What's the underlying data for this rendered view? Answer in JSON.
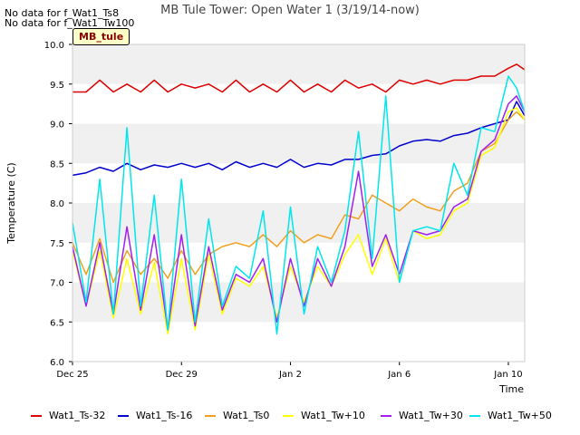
{
  "notes": [
    "No data for f_Wat1_Ts8",
    "No data for f_Wat1_Tw100"
  ],
  "site_tag": "MB_tule",
  "chart_data": {
    "type": "line",
    "title": "MB Tule Tower: Open Water 1 (3/19/14-now)",
    "xlabel": "Time",
    "ylabel": "Temperature (C)",
    "ylim": [
      6.0,
      10.0
    ],
    "y_ticks": [
      "6.0",
      "6.5",
      "7.0",
      "7.5",
      "8.0",
      "8.5",
      "9.0",
      "9.5",
      "10.0"
    ],
    "y_tick_values": [
      6.0,
      6.5,
      7.0,
      7.5,
      8.0,
      8.5,
      9.0,
      9.5,
      10.0
    ],
    "x_unit": "days since Dec 25",
    "xlim": [
      0,
      16.6
    ],
    "x_ticks": [
      {
        "label": "Dec 25",
        "value": 0
      },
      {
        "label": "Dec 29",
        "value": 4
      },
      {
        "label": "Jan 2",
        "value": 8
      },
      {
        "label": "Jan 6",
        "value": 12
      },
      {
        "label": "Jan 10",
        "value": 16
      }
    ],
    "grid": "horizontal bands",
    "legend_position": "bottom",
    "series": [
      {
        "name": "Wat1_Ts-32",
        "color": "#dd0000",
        "x": [
          0,
          0.5,
          1,
          1.5,
          2,
          2.5,
          3,
          3.5,
          4,
          4.5,
          5,
          5.5,
          6,
          6.5,
          7,
          7.5,
          8,
          8.5,
          9,
          9.5,
          10,
          10.5,
          11,
          11.5,
          12,
          12.5,
          13,
          13.5,
          14,
          14.5,
          15,
          15.5,
          16,
          16.3,
          16.6
        ],
        "values": [
          9.4,
          9.4,
          9.55,
          9.4,
          9.5,
          9.4,
          9.55,
          9.4,
          9.5,
          9.45,
          9.5,
          9.4,
          9.55,
          9.4,
          9.5,
          9.4,
          9.55,
          9.4,
          9.5,
          9.4,
          9.55,
          9.45,
          9.5,
          9.4,
          9.55,
          9.5,
          9.55,
          9.5,
          9.55,
          9.55,
          9.6,
          9.6,
          9.7,
          9.75,
          9.68
        ]
      },
      {
        "name": "Wat1_Ts-16",
        "color": "#0000cc",
        "x": [
          0,
          0.5,
          1,
          1.5,
          2,
          2.5,
          3,
          3.5,
          4,
          4.5,
          5,
          5.5,
          6,
          6.5,
          7,
          7.5,
          8,
          8.5,
          9,
          9.5,
          10,
          10.5,
          11,
          11.5,
          12,
          12.5,
          13,
          13.5,
          14,
          14.5,
          15,
          15.5,
          16,
          16.3,
          16.6
        ],
        "values": [
          8.35,
          8.38,
          8.45,
          8.4,
          8.5,
          8.42,
          8.48,
          8.45,
          8.5,
          8.45,
          8.5,
          8.42,
          8.52,
          8.45,
          8.5,
          8.45,
          8.55,
          8.45,
          8.5,
          8.48,
          8.55,
          8.55,
          8.6,
          8.62,
          8.72,
          8.78,
          8.8,
          8.78,
          8.85,
          8.88,
          8.95,
          9.0,
          9.05,
          9.28,
          9.1
        ]
      },
      {
        "name": "Wat1_Ts0",
        "color": "#f0a020",
        "x": [
          0,
          0.5,
          1,
          1.5,
          2,
          2.5,
          3,
          3.5,
          4,
          4.5,
          5,
          5.5,
          6,
          6.5,
          7,
          7.5,
          8,
          8.5,
          9,
          9.5,
          10,
          10.5,
          11,
          11.5,
          12,
          12.5,
          13,
          13.5,
          14,
          14.5,
          15,
          15.5,
          16,
          16.3,
          16.6
        ],
        "values": [
          7.5,
          7.1,
          7.55,
          7.0,
          7.4,
          7.1,
          7.3,
          7.05,
          7.4,
          7.1,
          7.35,
          7.45,
          7.5,
          7.45,
          7.6,
          7.45,
          7.65,
          7.5,
          7.6,
          7.55,
          7.85,
          7.8,
          8.1,
          8.0,
          7.9,
          8.05,
          7.95,
          7.9,
          8.15,
          8.25,
          8.65,
          8.75,
          9.05,
          9.15,
          9.05
        ]
      },
      {
        "name": "Wat1_Tw+10",
        "color": "#ffff00",
        "x": [
          0,
          0.5,
          1,
          1.5,
          2,
          2.5,
          3,
          3.5,
          4,
          4.5,
          5,
          5.5,
          6,
          6.5,
          7,
          7.5,
          8,
          8.5,
          9,
          9.5,
          10,
          10.5,
          11,
          11.5,
          12,
          12.5,
          13,
          13.5,
          14,
          14.5,
          15,
          15.5,
          16,
          16.3,
          16.6
        ],
        "values": [
          7.4,
          6.7,
          7.4,
          6.55,
          7.3,
          6.6,
          7.25,
          6.35,
          7.3,
          6.4,
          7.35,
          6.6,
          7.05,
          6.95,
          7.2,
          6.55,
          7.2,
          6.75,
          7.2,
          6.95,
          7.35,
          7.6,
          7.1,
          7.55,
          7.0,
          7.65,
          7.55,
          7.6,
          7.9,
          8.0,
          8.6,
          8.7,
          9.15,
          9.2,
          9.05
        ]
      },
      {
        "name": "Wat1_Tw+30",
        "color": "#a020f0",
        "x": [
          0,
          0.5,
          1,
          1.5,
          2,
          2.5,
          3,
          3.5,
          4,
          4.5,
          5,
          5.5,
          6,
          6.5,
          7,
          7.5,
          8,
          8.5,
          9,
          9.5,
          10,
          10.5,
          11,
          11.5,
          12,
          12.5,
          13,
          13.5,
          14,
          14.5,
          15,
          15.5,
          16,
          16.3,
          16.6
        ],
        "values": [
          7.45,
          6.7,
          7.5,
          6.6,
          7.7,
          6.65,
          7.6,
          6.4,
          7.6,
          6.45,
          7.45,
          6.65,
          7.1,
          7.0,
          7.3,
          6.5,
          7.3,
          6.7,
          7.3,
          6.95,
          7.45,
          8.4,
          7.2,
          7.6,
          7.1,
          7.65,
          7.6,
          7.65,
          7.95,
          8.05,
          8.65,
          8.8,
          9.25,
          9.35,
          9.15
        ]
      },
      {
        "name": "Wat1_Tw+50",
        "color": "#00e5ee",
        "x": [
          0,
          0.5,
          1,
          1.5,
          2,
          2.5,
          3,
          3.5,
          4,
          4.5,
          5,
          5.5,
          6,
          6.5,
          7,
          7.5,
          8,
          8.5,
          9,
          9.5,
          10,
          10.5,
          11,
          11.5,
          12,
          12.5,
          13,
          13.5,
          14,
          14.5,
          15,
          15.5,
          16,
          16.3,
          16.6
        ],
        "values": [
          7.75,
          6.75,
          8.3,
          6.6,
          8.95,
          6.7,
          8.1,
          6.4,
          8.3,
          6.5,
          7.8,
          6.7,
          7.2,
          7.05,
          7.9,
          6.35,
          7.95,
          6.6,
          7.45,
          7.0,
          7.65,
          8.9,
          7.3,
          9.35,
          7.0,
          7.65,
          7.7,
          7.65,
          8.5,
          8.1,
          8.95,
          8.9,
          9.6,
          9.45,
          9.15
        ]
      }
    ]
  }
}
